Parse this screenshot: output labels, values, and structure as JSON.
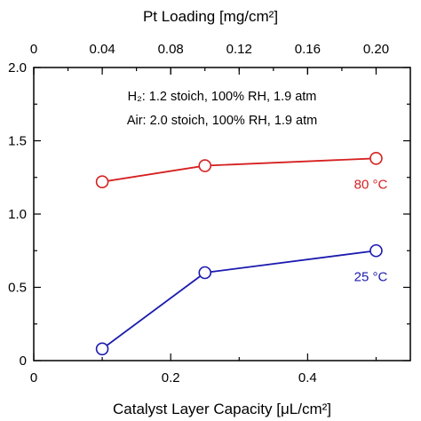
{
  "chart_data": {
    "type": "line",
    "title": "",
    "xlabel": "Catalyst Layer Capacity [μL/cm²]",
    "x2label": "Pt Loading [mg/cm²]",
    "ylabel": "",
    "xlim": [
      0,
      0.55
    ],
    "ylim": [
      0,
      2.0
    ],
    "x2lim": [
      0,
      0.22
    ],
    "x_ticks": [
      0,
      0.2,
      0.4
    ],
    "x_tick_labels": [
      "0",
      "0.2",
      "0.4"
    ],
    "y_ticks": [
      0,
      0.5,
      1.0,
      1.5,
      2.0
    ],
    "y_tick_labels": [
      "0",
      "0.5",
      "1.0",
      "1.5",
      "2.0"
    ],
    "x2_ticks": [
      0,
      0.04,
      0.08,
      0.12,
      0.16,
      0.2
    ],
    "x2_tick_labels": [
      "0",
      "0.04",
      "0.08",
      "0.12",
      "0.16",
      "0.20"
    ],
    "grid": false,
    "annotations": [
      "H₂: 1.2 stoich, 100% RH, 1.9 atm",
      "Air: 2.0 stoich, 100% RH, 1.9 atm"
    ],
    "series": [
      {
        "name": "80 °C",
        "color": "#d62020",
        "x": [
          0.1,
          0.25,
          0.5
        ],
        "y": [
          1.22,
          1.33,
          1.38
        ]
      },
      {
        "name": "25 °C",
        "color": "#1a1ab0",
        "x": [
          0.1,
          0.25,
          0.5
        ],
        "y": [
          0.08,
          0.6,
          0.75
        ]
      }
    ]
  }
}
